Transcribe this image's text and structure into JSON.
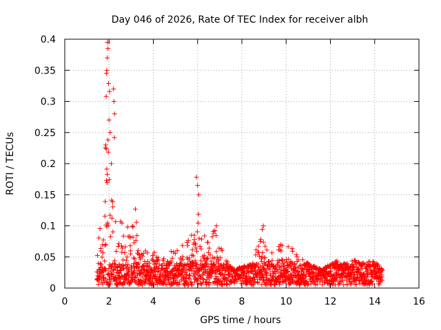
{
  "chart_data": {
    "type": "scatter",
    "title": "Day 046 of 2026, Rate Of TEC Index for receiver albh",
    "xlabel": "GPS time / hours",
    "ylabel": "ROTI / TECUs",
    "xlim": [
      0,
      16
    ],
    "ylim": [
      0,
      0.4
    ],
    "xticks": [
      "0",
      "2",
      "4",
      "6",
      "8",
      "10",
      "12",
      "14",
      "16"
    ],
    "yticks": [
      "0",
      "0.05",
      "0.1",
      "0.15",
      "0.2",
      "0.25",
      "0.3",
      "0.35",
      "0.4"
    ],
    "grid": true,
    "marker": "plus",
    "marker_color": "#ff0000",
    "series": [
      {
        "name": "ROTI",
        "x_start": 1.45,
        "x_end": 14.35,
        "baseline_range": [
          0.005,
          0.04
        ],
        "envelope": [
          {
            "x": 1.45,
            "top": 0.06
          },
          {
            "x": 1.6,
            "top": 0.1
          },
          {
            "x": 1.75,
            "top": 0.14
          },
          {
            "x": 1.85,
            "top": 0.25
          },
          {
            "x": 1.95,
            "top": 0.39
          },
          {
            "x": 2.05,
            "top": 0.3
          },
          {
            "x": 2.2,
            "top": 0.32
          },
          {
            "x": 2.35,
            "top": 0.18
          },
          {
            "x": 2.6,
            "top": 0.11
          },
          {
            "x": 3.0,
            "top": 0.09
          },
          {
            "x": 3.2,
            "top": 0.13
          },
          {
            "x": 3.5,
            "top": 0.06
          },
          {
            "x": 4.0,
            "top": 0.06
          },
          {
            "x": 4.3,
            "top": 0.07
          },
          {
            "x": 5.0,
            "top": 0.06
          },
          {
            "x": 5.7,
            "top": 0.08
          },
          {
            "x": 5.95,
            "top": 0.18
          },
          {
            "x": 6.1,
            "top": 0.12
          },
          {
            "x": 6.5,
            "top": 0.07
          },
          {
            "x": 6.8,
            "top": 0.1
          },
          {
            "x": 7.2,
            "top": 0.05
          },
          {
            "x": 7.6,
            "top": 0.03
          },
          {
            "x": 8.5,
            "top": 0.04
          },
          {
            "x": 8.9,
            "top": 0.1
          },
          {
            "x": 9.2,
            "top": 0.05
          },
          {
            "x": 9.6,
            "top": 0.07
          },
          {
            "x": 10.0,
            "top": 0.075
          },
          {
            "x": 10.6,
            "top": 0.05
          },
          {
            "x": 11.0,
            "top": 0.04
          },
          {
            "x": 11.6,
            "top": 0.03
          },
          {
            "x": 12.3,
            "top": 0.045
          },
          {
            "x": 12.7,
            "top": 0.04
          },
          {
            "x": 13.1,
            "top": 0.045
          },
          {
            "x": 13.5,
            "top": 0.04
          },
          {
            "x": 14.0,
            "top": 0.045
          },
          {
            "x": 14.35,
            "top": 0.03
          }
        ],
        "spikes": [
          {
            "x": 1.93,
            "y": 0.395
          },
          {
            "x": 1.95,
            "y": 0.385
          },
          {
            "x": 1.9,
            "y": 0.35
          },
          {
            "x": 1.92,
            "y": 0.37
          },
          {
            "x": 1.88,
            "y": 0.345
          },
          {
            "x": 1.87,
            "y": 0.308
          },
          {
            "x": 2.2,
            "y": 0.32
          },
          {
            "x": 2.22,
            "y": 0.3
          },
          {
            "x": 2.25,
            "y": 0.28
          },
          {
            "x": 2.0,
            "y": 0.27
          },
          {
            "x": 2.05,
            "y": 0.25
          },
          {
            "x": 1.85,
            "y": 0.23
          },
          {
            "x": 1.95,
            "y": 0.238
          },
          {
            "x": 2.1,
            "y": 0.2
          },
          {
            "x": 5.95,
            "y": 0.178
          },
          {
            "x": 6.0,
            "y": 0.165
          },
          {
            "x": 6.05,
            "y": 0.15
          },
          {
            "x": 8.97,
            "y": 0.1
          },
          {
            "x": 6.85,
            "y": 0.1
          }
        ]
      }
    ]
  }
}
